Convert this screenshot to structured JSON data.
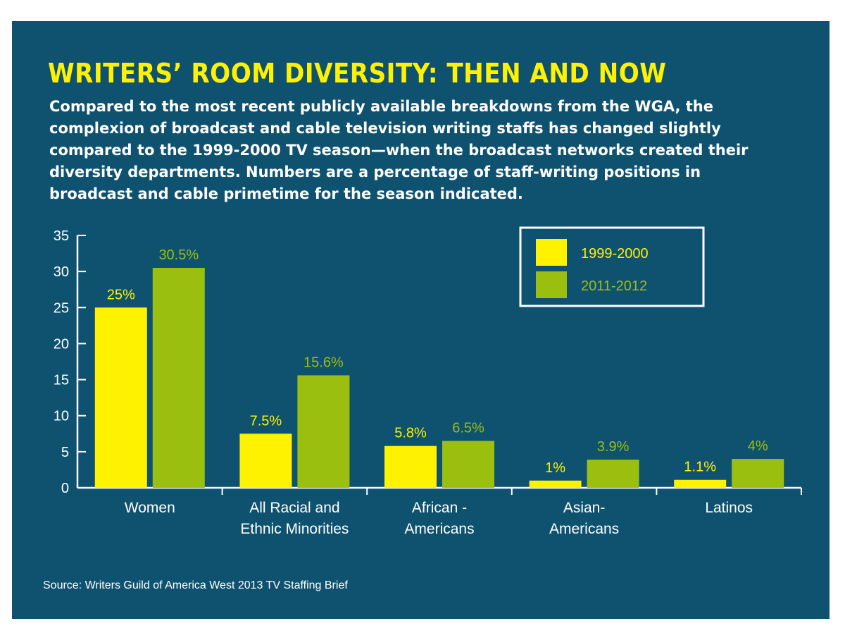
{
  "title": "WRITERS’ ROOM DIVERSITY: THEN AND NOW",
  "subtitle": "Compared to the most recent publicly available breakdowns from the WGA, the complexion of broadcast and cable television writing staffs has changed slightly compared to the 1999-2000 TV season—when the broadcast networks created their diversity departments. Numbers are a percentage of staff-writing positions in broadcast and cable primetime for the season indicated.",
  "source": "Source: Writers Guild of America West 2013 TV Staffing Brief",
  "colors": {
    "background": "#0f5270",
    "series_1999": "#fff200",
    "series_2011": "#9bbf0f",
    "title": "#fff200",
    "text": "#ffffff"
  },
  "chart_data": {
    "type": "bar",
    "categories": [
      [
        "Women"
      ],
      [
        "All Racial and",
        "Ethnic Minorities"
      ],
      [
        "African -",
        "Americans"
      ],
      [
        "Asian-",
        "Americans"
      ],
      [
        "Latinos"
      ]
    ],
    "series": [
      {
        "name": "1999-2000",
        "values": [
          25,
          7.5,
          5.8,
          1,
          1.1
        ],
        "labels": [
          "25%",
          "7.5%",
          "5.8%",
          "1%",
          "1.1%"
        ]
      },
      {
        "name": "2011-2012",
        "values": [
          30.5,
          15.6,
          6.5,
          3.9,
          4
        ],
        "labels": [
          "30.5%",
          "15.6%",
          "6.5%",
          "3.9%",
          "4%"
        ]
      }
    ],
    "ylim": [
      0,
      35
    ],
    "yticks": [
      0,
      5,
      10,
      15,
      20,
      25,
      30,
      35
    ],
    "legend_position": "top-right",
    "grid": false
  }
}
